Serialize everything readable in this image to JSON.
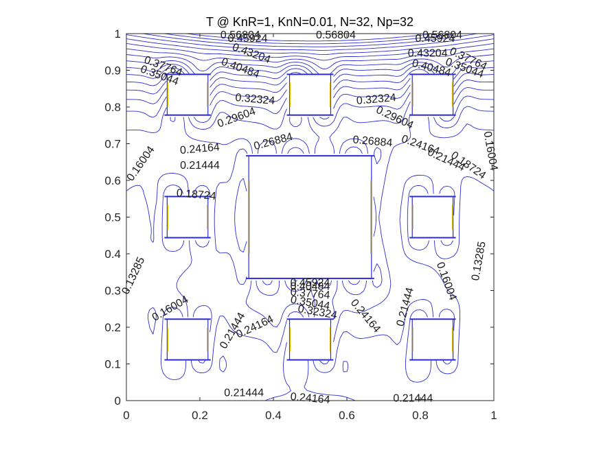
{
  "chart_data": {
    "type": "contour",
    "title": "T @ KnR=1, KnN=0.01, N=32, Np=32",
    "xlabel": "",
    "ylabel": "",
    "xlim": [
      0,
      1
    ],
    "ylim": [
      0,
      1
    ],
    "x_ticks": [
      "0",
      "0.2",
      "0.4",
      "0.6",
      "0.8",
      "1"
    ],
    "y_ticks": [
      "0",
      "0.1",
      "0.2",
      "0.3",
      "0.4",
      "0.5",
      "0.6",
      "0.7",
      "0.8",
      "0.9",
      "1"
    ],
    "grid": false,
    "colors": {
      "contour": "#2b2bd0",
      "heater_edge": "#e6c400",
      "axis": "#262626"
    },
    "obstacles": [
      {
        "name": "large-center",
        "x0": 0.333,
        "x1": 0.667,
        "y0": 0.333,
        "y1": 0.667
      },
      {
        "name": "small-top-left",
        "x0": 0.111,
        "x1": 0.222,
        "y0": 0.778,
        "y1": 0.889
      },
      {
        "name": "small-top-center",
        "x0": 0.444,
        "x1": 0.556,
        "y0": 0.778,
        "y1": 0.889
      },
      {
        "name": "small-top-right",
        "x0": 0.778,
        "x1": 0.889,
        "y0": 0.778,
        "y1": 0.889
      },
      {
        "name": "small-mid-left",
        "x0": 0.111,
        "x1": 0.222,
        "y0": 0.444,
        "y1": 0.556
      },
      {
        "name": "small-mid-right",
        "x0": 0.778,
        "x1": 0.889,
        "y0": 0.444,
        "y1": 0.556
      },
      {
        "name": "small-bottom-left",
        "x0": 0.111,
        "x1": 0.222,
        "y0": 0.111,
        "y1": 0.222
      },
      {
        "name": "small-bottom-center",
        "x0": 0.444,
        "x1": 0.556,
        "y0": 0.111,
        "y1": 0.222
      },
      {
        "name": "small-bottom-right",
        "x0": 0.778,
        "x1": 0.889,
        "y0": 0.111,
        "y1": 0.222
      }
    ],
    "labels": [
      {
        "text": "0.56804",
        "x": 0.31,
        "y": 0.995,
        "angle": 0
      },
      {
        "text": "0.56804",
        "x": 0.57,
        "y": 0.995,
        "angle": 0
      },
      {
        "text": "0.56804",
        "x": 0.86,
        "y": 0.995,
        "angle": 0
      },
      {
        "text": "0.45924",
        "x": 0.33,
        "y": 0.985,
        "angle": 0
      },
      {
        "text": "0.45924",
        "x": 0.84,
        "y": 0.985,
        "angle": 0
      },
      {
        "text": "0.43204",
        "x": 0.34,
        "y": 0.945,
        "angle": -20
      },
      {
        "text": "0.43204",
        "x": 0.82,
        "y": 0.945,
        "angle": 0
      },
      {
        "text": "0.40484",
        "x": 0.31,
        "y": 0.905,
        "angle": -20
      },
      {
        "text": "0.40484",
        "x": 0.83,
        "y": 0.905,
        "angle": -15
      },
      {
        "text": "0.37764",
        "x": 0.1,
        "y": 0.91,
        "angle": -20
      },
      {
        "text": "0.37764",
        "x": 0.93,
        "y": 0.93,
        "angle": -25
      },
      {
        "text": "0.35044",
        "x": 0.09,
        "y": 0.885,
        "angle": -20
      },
      {
        "text": "0.35044",
        "x": 0.92,
        "y": 0.905,
        "angle": -20
      },
      {
        "text": "0.32324",
        "x": 0.35,
        "y": 0.82,
        "angle": -5
      },
      {
        "text": "0.32324",
        "x": 0.68,
        "y": 0.82,
        "angle": 5
      },
      {
        "text": "0.29604",
        "x": 0.3,
        "y": 0.77,
        "angle": 20
      },
      {
        "text": "0.29604",
        "x": 0.73,
        "y": 0.77,
        "angle": -25
      },
      {
        "text": "0.26884",
        "x": 0.4,
        "y": 0.705,
        "angle": 15
      },
      {
        "text": "0.26884",
        "x": 0.67,
        "y": 0.705,
        "angle": -5
      },
      {
        "text": "0.24164",
        "x": 0.2,
        "y": 0.685,
        "angle": 5
      },
      {
        "text": "0.24164",
        "x": 0.8,
        "y": 0.695,
        "angle": -20
      },
      {
        "text": "0.21444",
        "x": 0.2,
        "y": 0.64,
        "angle": 0
      },
      {
        "text": "0.21444",
        "x": 0.87,
        "y": 0.655,
        "angle": -25
      },
      {
        "text": "0.18724",
        "x": 0.19,
        "y": 0.56,
        "angle": -5
      },
      {
        "text": "0.18724",
        "x": 0.93,
        "y": 0.64,
        "angle": -35
      },
      {
        "text": "0.16004",
        "x": 0.04,
        "y": 0.645,
        "angle": 55
      },
      {
        "text": "0.16004",
        "x": 0.99,
        "y": 0.68,
        "angle": -80
      },
      {
        "text": "0.13285",
        "x": 0.96,
        "y": 0.38,
        "angle": 80
      },
      {
        "text": "0.13285",
        "x": 0.02,
        "y": 0.34,
        "angle": 65
      },
      {
        "text": "0.16004",
        "x": 0.12,
        "y": 0.25,
        "angle": 30
      },
      {
        "text": "0.16004",
        "x": 0.87,
        "y": 0.325,
        "angle": -70
      },
      {
        "text": "0.21444",
        "x": 0.29,
        "y": 0.19,
        "angle": 60
      },
      {
        "text": "0.21444",
        "x": 0.76,
        "y": 0.255,
        "angle": 75
      },
      {
        "text": "0.24164",
        "x": 0.35,
        "y": 0.2,
        "angle": 25
      },
      {
        "text": "0.24164",
        "x": 0.65,
        "y": 0.23,
        "angle": -50
      },
      {
        "text": "0.45924",
        "x": 0.5,
        "y": 0.32,
        "angle": 0
      },
      {
        "text": "0.40484",
        "x": 0.5,
        "y": 0.31,
        "angle": 0
      },
      {
        "text": "0.37764",
        "x": 0.5,
        "y": 0.29,
        "angle": -5
      },
      {
        "text": "0.35044",
        "x": 0.5,
        "y": 0.265,
        "angle": -10
      },
      {
        "text": "0.32324",
        "x": 0.52,
        "y": 0.24,
        "angle": -10
      },
      {
        "text": "0.21444",
        "x": 0.32,
        "y": 0.02,
        "angle": 0
      },
      {
        "text": "0.24164",
        "x": 0.5,
        "y": 0.005,
        "angle": -5
      },
      {
        "text": "0.21444",
        "x": 0.78,
        "y": 0.005,
        "angle": 0
      }
    ]
  }
}
